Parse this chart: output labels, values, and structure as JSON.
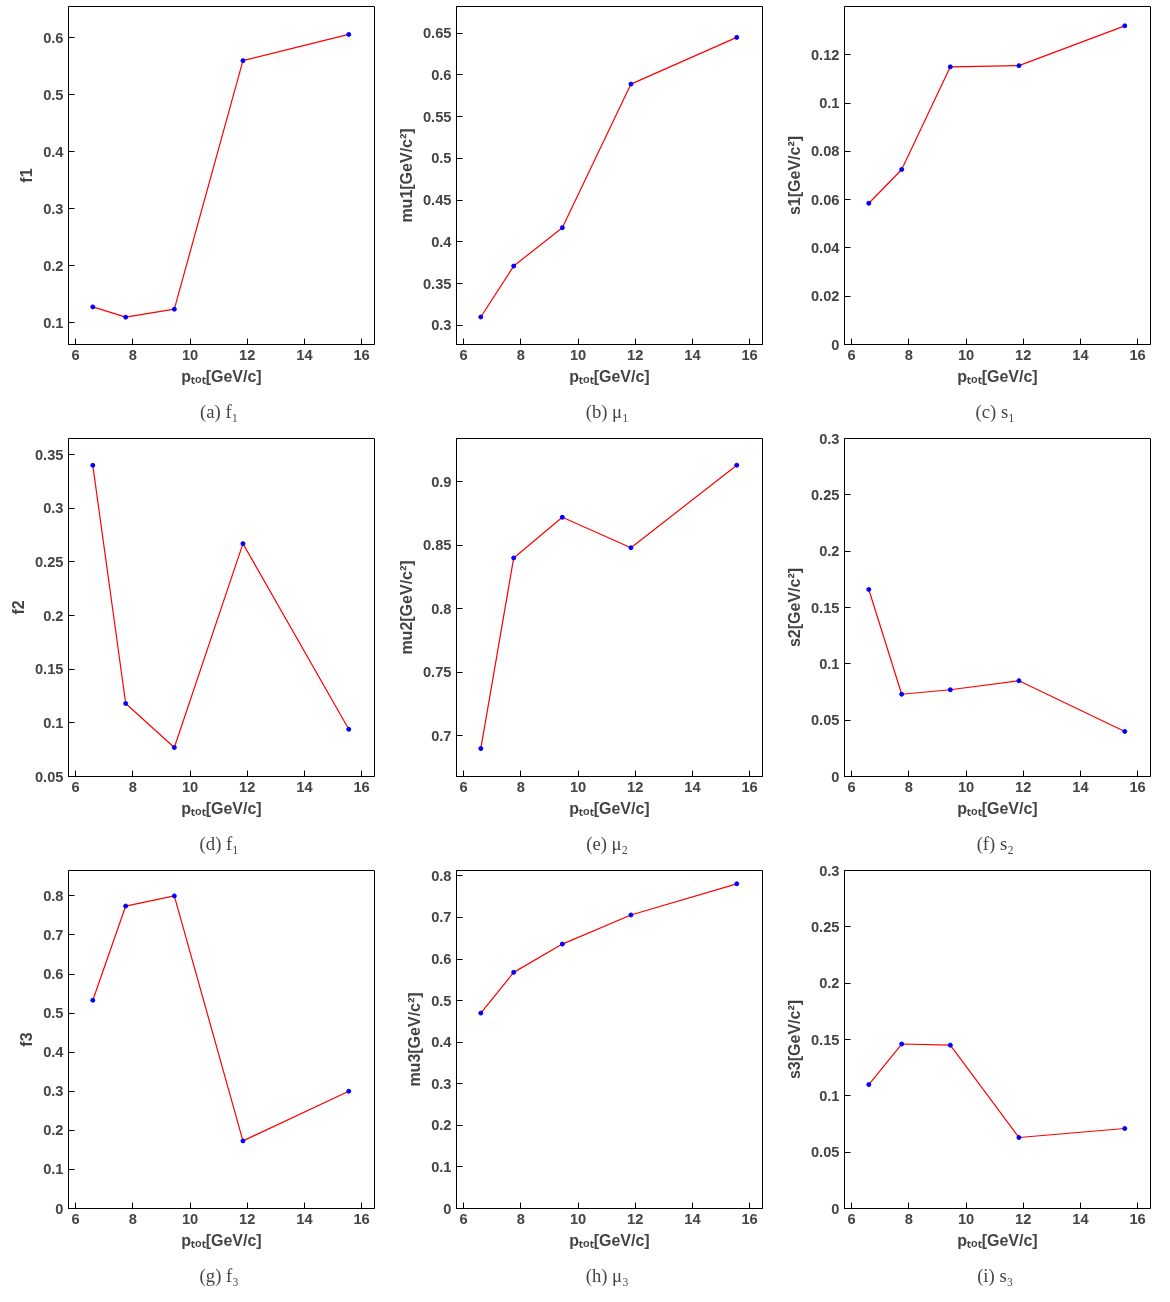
{
  "chart_data": [
    {
      "type": "line",
      "xlabel": "pₜₒₜ[GeV/c]",
      "ylabel": "f1",
      "annotations": [
        "(a)  f₁"
      ],
      "x": [
        6.6,
        7.75,
        9.45,
        11.85,
        15.55
      ],
      "xlim": [
        5.75,
        16.45
      ],
      "xticks": [
        6,
        8,
        10,
        12,
        14,
        16
      ],
      "ylim": [
        0.062,
        0.655
      ],
      "yticks": [
        0.1,
        0.2,
        0.3,
        0.4,
        0.5,
        0.6
      ],
      "marker": "circle",
      "grid": false,
      "series": [
        {
          "color": "#ff0000",
          "values": [
            0.128,
            0.11,
            0.124,
            0.56,
            0.606
          ]
        }
      ]
    },
    {
      "type": "line",
      "xlabel": "pₜₒₜ[GeV/c]",
      "ylabel": "mu1[GeV/c²]",
      "annotations": [
        "(b)  μ₁"
      ],
      "x": [
        6.6,
        7.75,
        9.45,
        11.85,
        15.55
      ],
      "xlim": [
        5.75,
        16.45
      ],
      "xticks": [
        6,
        8,
        10,
        12,
        14,
        16
      ],
      "ylim": [
        0.277,
        0.682
      ],
      "yticks": [
        0.3,
        0.35,
        0.4,
        0.45,
        0.5,
        0.55,
        0.6,
        0.65
      ],
      "marker": "circle",
      "grid": false,
      "series": [
        {
          "color": "#ff0000",
          "values": [
            0.31,
            0.371,
            0.417,
            0.589,
            0.645
          ]
        }
      ]
    },
    {
      "type": "line",
      "xlabel": "pₜₒₜ[GeV/c]",
      "ylabel": "s1[GeV/c²]",
      "annotations": [
        "(c)  s₁"
      ],
      "x": [
        6.6,
        7.75,
        9.45,
        11.85,
        15.55
      ],
      "xlim": [
        5.75,
        16.45
      ],
      "xticks": [
        6,
        8,
        10,
        12,
        14,
        16
      ],
      "ylim": [
        0,
        0.14
      ],
      "yticks": [
        0,
        0.02,
        0.04,
        0.06,
        0.08,
        0.1,
        0.12
      ],
      "marker": "circle",
      "grid": false,
      "series": [
        {
          "color": "#ff0000",
          "values": [
            0.0585,
            0.0725,
            0.115,
            0.1155,
            0.132
          ]
        }
      ]
    },
    {
      "type": "line",
      "xlabel": "pₜₒₜ[GeV/c]",
      "ylabel": "f2",
      "annotations": [
        "(d)  f₁"
      ],
      "x": [
        6.6,
        7.75,
        9.45,
        11.85,
        15.55
      ],
      "xlim": [
        5.75,
        16.45
      ],
      "xticks": [
        6,
        8,
        10,
        12,
        14,
        16
      ],
      "ylim": [
        0.05,
        0.365
      ],
      "yticks": [
        0.05,
        0.1,
        0.15,
        0.2,
        0.25,
        0.3,
        0.35
      ],
      "marker": "circle",
      "grid": false,
      "series": [
        {
          "color": "#ff0000",
          "values": [
            0.34,
            0.118,
            0.077,
            0.267,
            0.094
          ]
        }
      ]
    },
    {
      "type": "line",
      "xlabel": "pₜₒₜ[GeV/c]",
      "ylabel": "mu2[GeV/c²]",
      "annotations": [
        "(e)  μ₂"
      ],
      "x": [
        6.6,
        7.75,
        9.45,
        11.85,
        15.55
      ],
      "xlim": [
        5.75,
        16.45
      ],
      "xticks": [
        6,
        8,
        10,
        12,
        14,
        16
      ],
      "ylim": [
        0.668,
        0.934
      ],
      "yticks": [
        0.7,
        0.75,
        0.8,
        0.85,
        0.9
      ],
      "marker": "circle",
      "grid": false,
      "series": [
        {
          "color": "#ff0000",
          "values": [
            0.69,
            0.84,
            0.872,
            0.848,
            0.913
          ]
        }
      ]
    },
    {
      "type": "line",
      "xlabel": "pₜₒₜ[GeV/c]",
      "ylabel": "s2[GeV/c²]",
      "annotations": [
        "(f)  s₂"
      ],
      "x": [
        6.6,
        7.75,
        9.45,
        11.85,
        15.55
      ],
      "xlim": [
        5.75,
        16.45
      ],
      "xticks": [
        6,
        8,
        10,
        12,
        14,
        16
      ],
      "ylim": [
        0,
        0.3
      ],
      "yticks": [
        0,
        0.05,
        0.1,
        0.15,
        0.2,
        0.25,
        0.3
      ],
      "marker": "circle",
      "grid": false,
      "series": [
        {
          "color": "#ff0000",
          "values": [
            0.166,
            0.073,
            0.077,
            0.085,
            0.04
          ]
        }
      ]
    },
    {
      "type": "line",
      "xlabel": "pₜₒₜ[GeV/c]",
      "ylabel": "f3",
      "annotations": [
        "(g)  f₃"
      ],
      "x": [
        6.6,
        7.75,
        9.45,
        11.85,
        15.55
      ],
      "xlim": [
        5.75,
        16.45
      ],
      "xticks": [
        6,
        8,
        10,
        12,
        14,
        16
      ],
      "ylim": [
        0,
        0.865
      ],
      "yticks": [
        0,
        0.1,
        0.2,
        0.3,
        0.4,
        0.5,
        0.6,
        0.7,
        0.8
      ],
      "marker": "circle",
      "grid": false,
      "series": [
        {
          "color": "#ff0000",
          "values": [
            0.533,
            0.774,
            0.8,
            0.173,
            0.3
          ]
        }
      ]
    },
    {
      "type": "line",
      "xlabel": "pₜₒₜ[GeV/c]",
      "ylabel": "mu3[GeV/c²]",
      "annotations": [
        "(h)  μ₃"
      ],
      "x": [
        6.6,
        7.75,
        9.45,
        11.85,
        15.55
      ],
      "xlim": [
        5.75,
        16.45
      ],
      "xticks": [
        6,
        8,
        10,
        12,
        14,
        16
      ],
      "ylim": [
        0,
        0.813
      ],
      "yticks": [
        0,
        0.1,
        0.2,
        0.3,
        0.4,
        0.5,
        0.6,
        0.7,
        0.8
      ],
      "marker": "circle",
      "grid": false,
      "series": [
        {
          "color": "#ff0000",
          "values": [
            0.47,
            0.568,
            0.636,
            0.706,
            0.781
          ]
        }
      ]
    },
    {
      "type": "line",
      "xlabel": "pₜₒₜ[GeV/c]",
      "ylabel": "s3[GeV/c²]",
      "annotations": [
        "(i)  s₃"
      ],
      "x": [
        6.6,
        7.75,
        9.45,
        11.85,
        15.55
      ],
      "xlim": [
        5.75,
        16.45
      ],
      "xticks": [
        6,
        8,
        10,
        12,
        14,
        16
      ],
      "ylim": [
        0,
        0.3
      ],
      "yticks": [
        0,
        0.05,
        0.1,
        0.15,
        0.2,
        0.25,
        0.3
      ],
      "marker": "circle",
      "grid": false,
      "series": [
        {
          "color": "#ff0000",
          "values": [
            0.11,
            0.146,
            0.145,
            0.063,
            0.071
          ]
        }
      ]
    }
  ]
}
